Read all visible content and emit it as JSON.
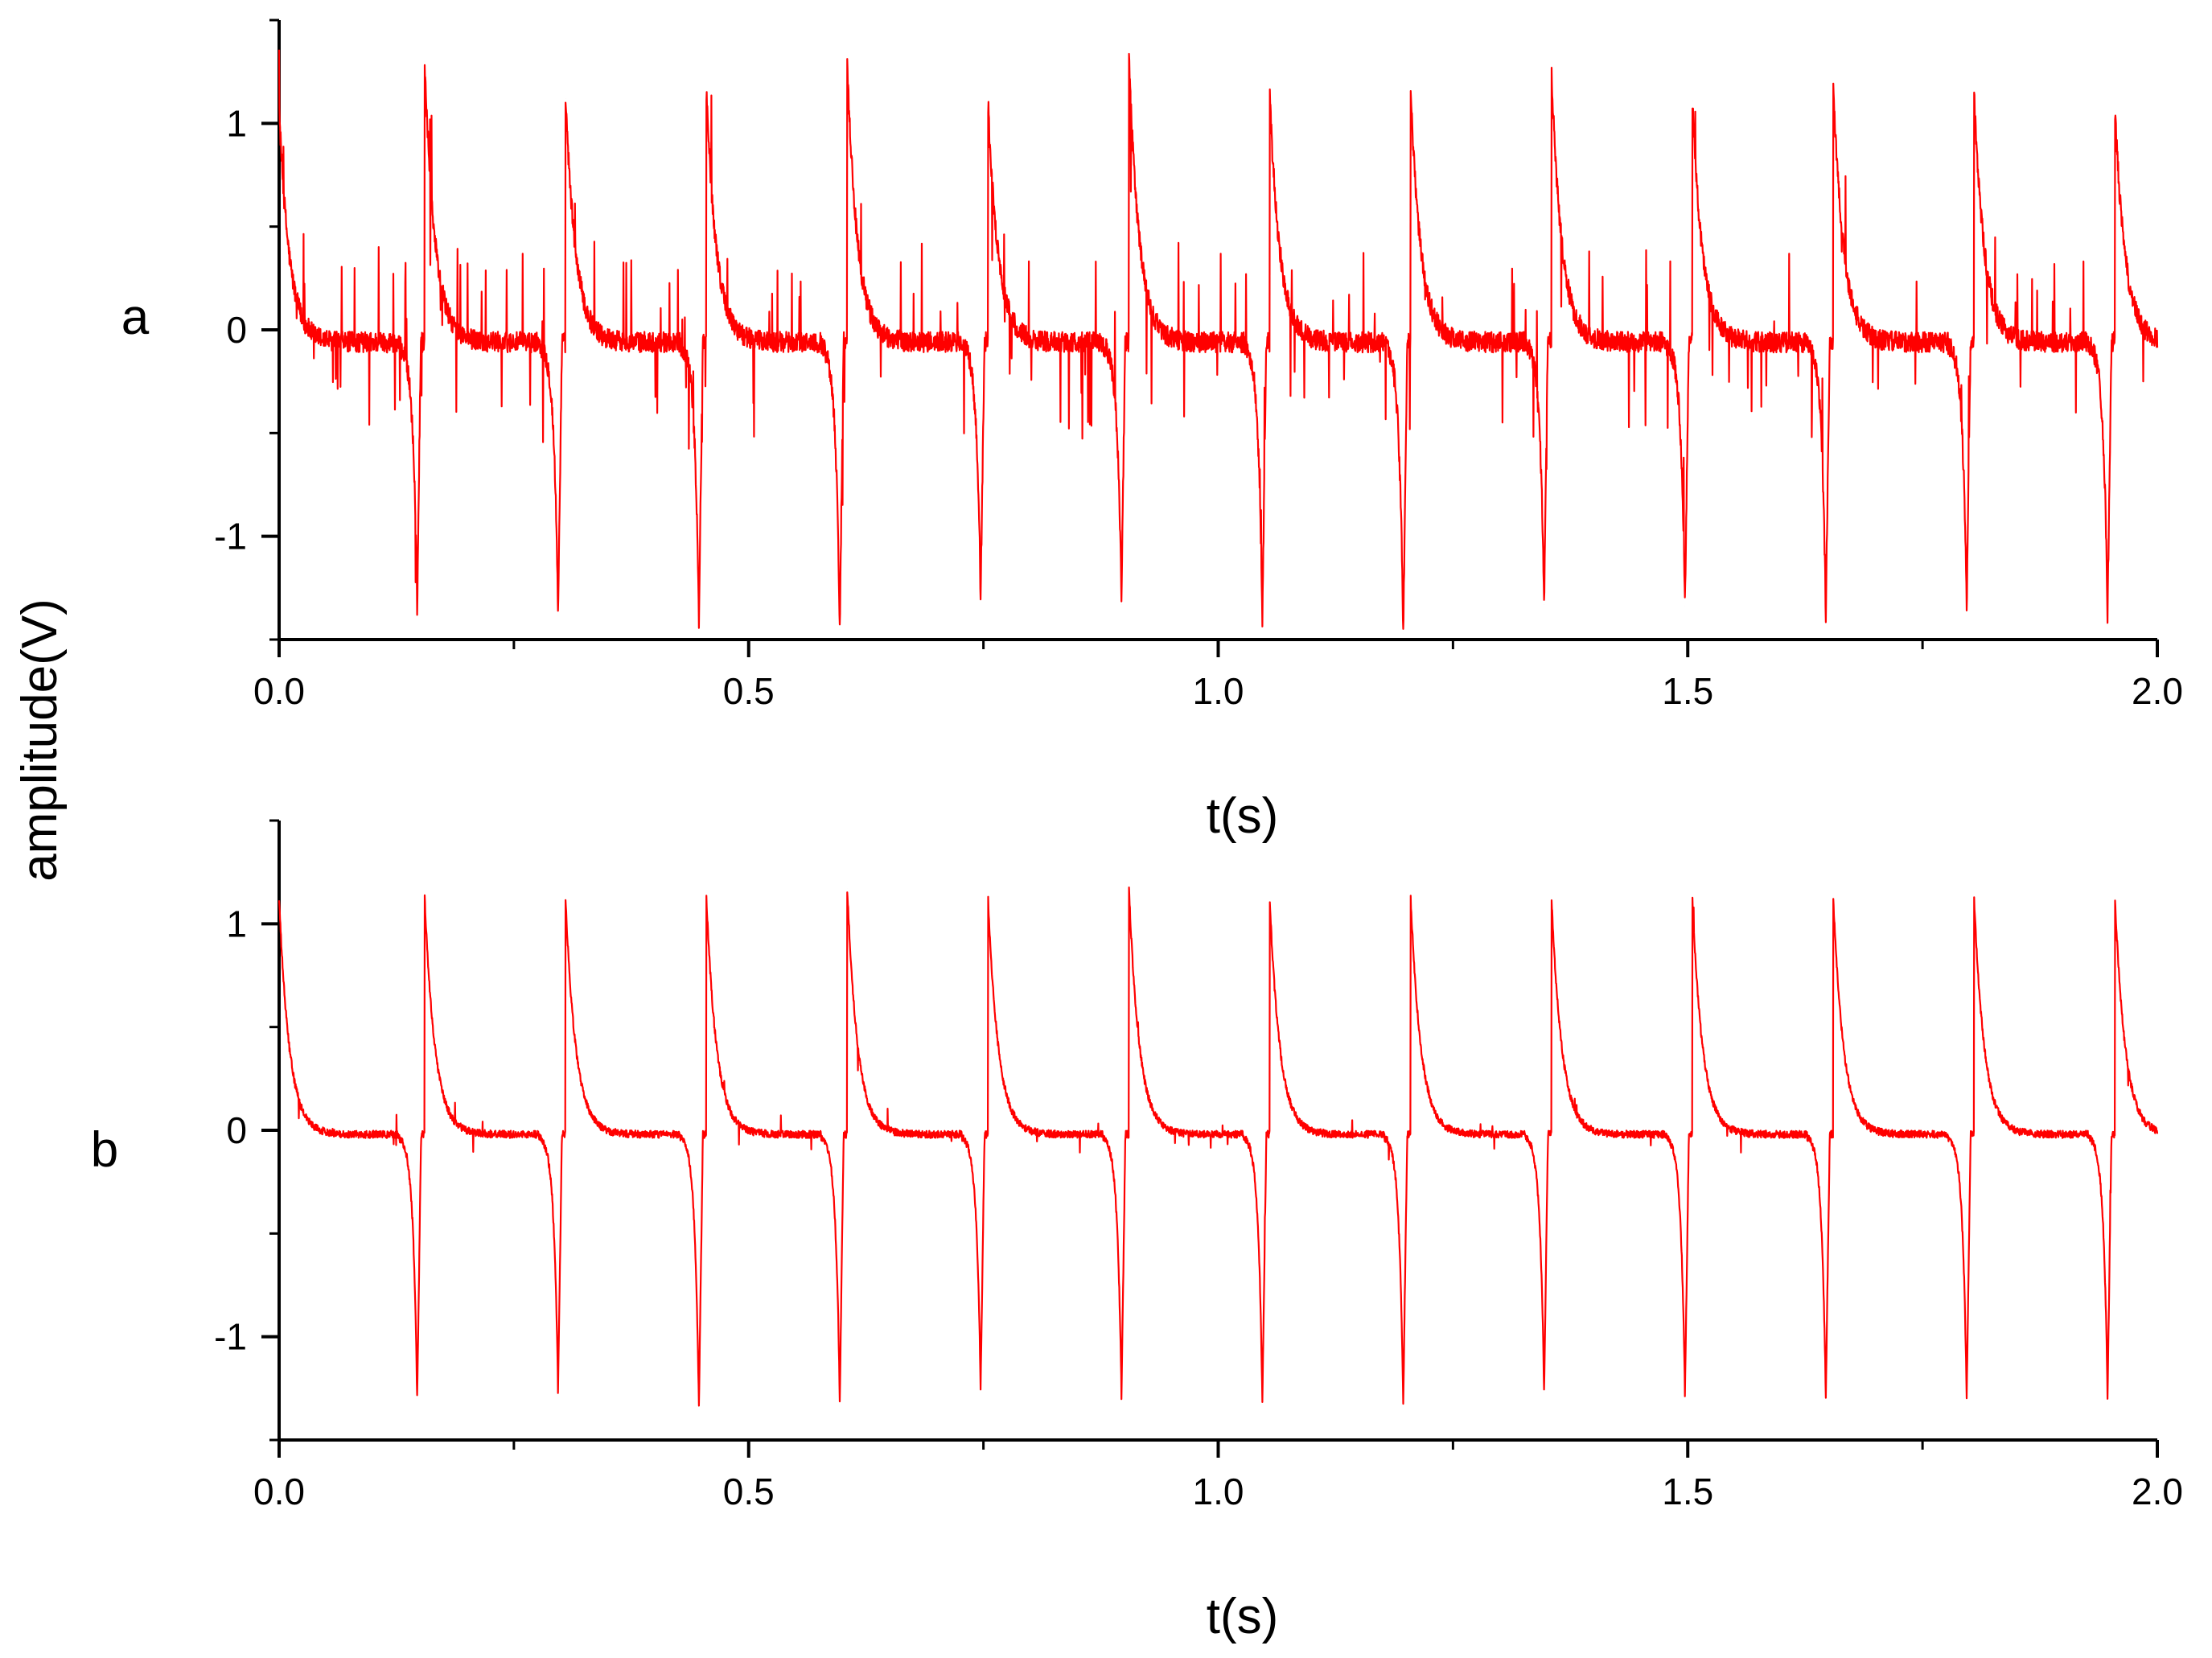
{
  "shared_ylabel": "amplitude(V)",
  "chart_data": [
    {
      "type": "line",
      "panel_label": "a",
      "title": "",
      "xlabel": "t(s)",
      "ylabel": "amplitude(V)",
      "xlim": [
        0,
        2.0
      ],
      "ylim": [
        -1.5,
        1.5
      ],
      "xticks": [
        0.0,
        0.5,
        1.0,
        1.5,
        2.0
      ],
      "xtick_labels": [
        "0.0",
        "0.5",
        "1.0",
        "1.5",
        "2.0"
      ],
      "yticks": [
        -1,
        0,
        1
      ],
      "ytick_labels": [
        "-1",
        "0",
        "1"
      ],
      "grid": false,
      "legend": "none",
      "color": "#ff0000",
      "signal": {
        "period_s": 0.15,
        "baseline_v": -0.06,
        "noise": "high",
        "spike_amplitude_v": 0.45,
        "peak_times_s": [
          0.0,
          0.155,
          0.305,
          0.455,
          0.605,
          0.755,
          0.905,
          1.055,
          1.205,
          1.355,
          1.505,
          1.655,
          1.805,
          1.955
        ],
        "peak_values_v": [
          1.07,
          1.3,
          1.12,
          1.15,
          1.27,
          1.09,
          1.31,
          1.12,
          1.15,
          1.24,
          1.11,
          1.18,
          1.15,
          1.06
        ],
        "trough_times_s": [
          0.147,
          0.297,
          0.447,
          0.597,
          0.747,
          0.897,
          1.047,
          1.197,
          1.347,
          1.497,
          1.647,
          1.797,
          1.947
        ],
        "trough_values_v": [
          -1.35,
          -1.38,
          -1.41,
          -1.45,
          -1.3,
          -1.33,
          -1.4,
          -1.47,
          -1.33,
          -1.34,
          -1.39,
          -1.36,
          -1.37
        ]
      }
    },
    {
      "type": "line",
      "panel_label": "b",
      "title": "",
      "xlabel": "t(s)",
      "ylabel": "amplitude(V)",
      "xlim": [
        0,
        2.0
      ],
      "ylim": [
        -1.5,
        1.5
      ],
      "xticks": [
        0.0,
        0.5,
        1.0,
        1.5,
        2.0
      ],
      "xtick_labels": [
        "0.0",
        "0.5",
        "1.0",
        "1.5",
        "2.0"
      ],
      "yticks": [
        -1,
        0,
        1
      ],
      "ytick_labels": [
        "-1",
        "0",
        "1"
      ],
      "grid": false,
      "legend": "none",
      "color": "#ff0000",
      "signal": {
        "period_s": 0.15,
        "baseline_v": -0.02,
        "noise": "low",
        "spike_amplitude_v": 0.1,
        "peak_times_s": [
          0.0,
          0.155,
          0.305,
          0.455,
          0.605,
          0.755,
          0.905,
          1.055,
          1.205,
          1.355,
          1.505,
          1.655,
          1.805,
          1.955
        ],
        "peak_values_v": [
          1.12,
          1.13,
          1.12,
          1.12,
          1.17,
          1.12,
          1.17,
          1.1,
          1.12,
          1.12,
          1.12,
          1.12,
          1.12,
          1.12
        ],
        "trough_times_s": [
          0.147,
          0.297,
          0.447,
          0.597,
          0.747,
          0.897,
          1.047,
          1.197,
          1.347,
          1.497,
          1.647,
          1.797,
          1.947
        ],
        "trough_values_v": [
          -1.3,
          -1.27,
          -1.34,
          -1.31,
          -1.25,
          -1.29,
          -1.31,
          -1.33,
          -1.27,
          -1.28,
          -1.3,
          -1.3,
          -1.29
        ]
      }
    }
  ]
}
